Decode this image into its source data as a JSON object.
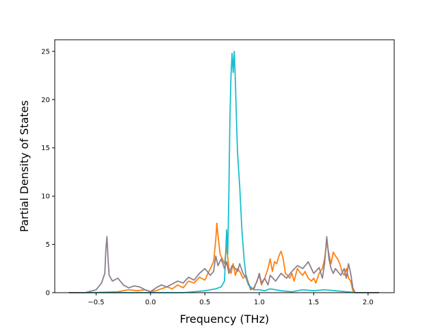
{
  "chart_data": {
    "type": "line",
    "xlabel": "Frequency (THz)",
    "ylabel": "Partial Density of States",
    "xlim": [
      -0.88,
      2.24
    ],
    "ylim": [
      0,
      26.2
    ],
    "xticks": [
      -0.5,
      0.0,
      0.5,
      1.0,
      1.5,
      2.0
    ],
    "xtick_labels": [
      "−0.5",
      "0.0",
      "0.5",
      "1.0",
      "1.5",
      "2.0"
    ],
    "yticks": [
      0,
      5,
      10,
      15,
      20,
      25
    ],
    "ytick_labels": [
      "0",
      "5",
      "10",
      "15",
      "20",
      "25"
    ],
    "grid": false,
    "series": [
      {
        "color": "#ff7f0e",
        "x": [
          -0.75,
          -0.55,
          -0.3,
          -0.2,
          -0.12,
          -0.05,
          0.0,
          0.05,
          0.1,
          0.15,
          0.2,
          0.25,
          0.3,
          0.35,
          0.4,
          0.45,
          0.5,
          0.52,
          0.55,
          0.58,
          0.6,
          0.61,
          0.62,
          0.64,
          0.66,
          0.68,
          0.7,
          0.72,
          0.74,
          0.76,
          0.78,
          0.8,
          0.82,
          0.85,
          0.88,
          0.9,
          0.92,
          0.95,
          0.97,
          1.0,
          1.02,
          1.05,
          1.08,
          1.1,
          1.12,
          1.14,
          1.16,
          1.18,
          1.2,
          1.22,
          1.24,
          1.26,
          1.28,
          1.3,
          1.32,
          1.35,
          1.38,
          1.4,
          1.42,
          1.45,
          1.48,
          1.5,
          1.52,
          1.55,
          1.58,
          1.6,
          1.62,
          1.64,
          1.66,
          1.68,
          1.7,
          1.72,
          1.74,
          1.76,
          1.78,
          1.8,
          1.82,
          1.84,
          1.86,
          1.88,
          2.1
        ],
        "y": [
          0,
          0,
          0.1,
          0.3,
          0.2,
          0.3,
          0.1,
          0.2,
          0.4,
          0.6,
          0.4,
          0.8,
          0.5,
          1.2,
          1.0,
          1.6,
          1.3,
          1.8,
          2.5,
          3.2,
          5.5,
          7.2,
          6.0,
          4.0,
          3.5,
          3.0,
          4.8,
          2.5,
          2.0,
          3.0,
          1.8,
          2.5,
          2.2,
          1.5,
          1.8,
          1.0,
          0.5,
          0.3,
          1.0,
          1.8,
          0.8,
          1.5,
          2.5,
          3.5,
          2.2,
          3.2,
          3.0,
          3.8,
          4.3,
          3.5,
          2.0,
          1.8,
          1.5,
          2.0,
          1.2,
          2.5,
          2.0,
          1.8,
          2.2,
          1.5,
          1.2,
          1.5,
          1.0,
          2.0,
          2.5,
          3.5,
          5.3,
          4.0,
          3.0,
          4.2,
          3.8,
          3.5,
          3.0,
          2.2,
          1.8,
          2.5,
          1.5,
          1.2,
          0.2,
          0,
          0
        ]
      },
      {
        "color": "#17becf",
        "x": [
          -0.75,
          0.3,
          0.4,
          0.5,
          0.55,
          0.6,
          0.65,
          0.68,
          0.7,
          0.71,
          0.72,
          0.73,
          0.74,
          0.75,
          0.76,
          0.77,
          0.78,
          0.79,
          0.8,
          0.82,
          0.84,
          0.86,
          0.88,
          0.9,
          0.95,
          1.0,
          1.05,
          1.1,
          1.2,
          1.3,
          1.4,
          1.5,
          1.6,
          1.7,
          1.8,
          1.9,
          2.1
        ],
        "y": [
          0,
          0,
          0.1,
          0.2,
          0.3,
          0.4,
          0.6,
          1.2,
          6.5,
          4.0,
          10.0,
          18.0,
          22.5,
          24.8,
          22.8,
          25.0,
          22.0,
          18.0,
          14.5,
          11.0,
          6.5,
          3.5,
          1.5,
          0.8,
          0.3,
          0.3,
          0.2,
          0.4,
          0.2,
          0.1,
          0.3,
          0.2,
          0.3,
          0.2,
          0.1,
          0,
          0
        ]
      },
      {
        "color": "#8c7e8d",
        "x": [
          -0.75,
          -0.6,
          -0.5,
          -0.45,
          -0.42,
          -0.41,
          -0.4,
          -0.39,
          -0.38,
          -0.35,
          -0.3,
          -0.25,
          -0.2,
          -0.15,
          -0.1,
          -0.05,
          0.0,
          0.05,
          0.1,
          0.15,
          0.2,
          0.25,
          0.3,
          0.35,
          0.4,
          0.45,
          0.5,
          0.55,
          0.58,
          0.6,
          0.62,
          0.65,
          0.68,
          0.7,
          0.72,
          0.75,
          0.78,
          0.8,
          0.82,
          0.85,
          0.88,
          0.9,
          0.92,
          0.95,
          0.98,
          1.0,
          1.02,
          1.05,
          1.08,
          1.1,
          1.15,
          1.2,
          1.25,
          1.3,
          1.35,
          1.4,
          1.45,
          1.5,
          1.55,
          1.58,
          1.6,
          1.62,
          1.64,
          1.66,
          1.68,
          1.7,
          1.72,
          1.75,
          1.78,
          1.8,
          1.82,
          1.84,
          1.86,
          1.88,
          2.1
        ],
        "y": [
          0,
          0,
          0.3,
          1.0,
          2.0,
          4.5,
          5.8,
          3.5,
          1.8,
          1.2,
          1.5,
          0.8,
          0.5,
          0.7,
          0.6,
          0.3,
          0.1,
          0.5,
          0.8,
          0.6,
          0.9,
          1.2,
          1.0,
          1.6,
          1.3,
          2.0,
          2.5,
          1.8,
          2.2,
          3.8,
          2.8,
          3.5,
          2.5,
          3.2,
          2.0,
          2.8,
          2.5,
          2.2,
          3.0,
          2.0,
          1.5,
          1.0,
          0.3,
          0.5,
          1.2,
          2.0,
          1.0,
          1.5,
          0.8,
          1.8,
          1.2,
          2.0,
          1.5,
          2.2,
          2.8,
          2.5,
          3.2,
          2.0,
          2.6,
          1.5,
          3.0,
          5.8,
          3.5,
          2.5,
          2.0,
          2.5,
          2.2,
          1.8,
          2.5,
          1.5,
          3.0,
          2.0,
          0.5,
          0,
          0
        ]
      }
    ]
  }
}
